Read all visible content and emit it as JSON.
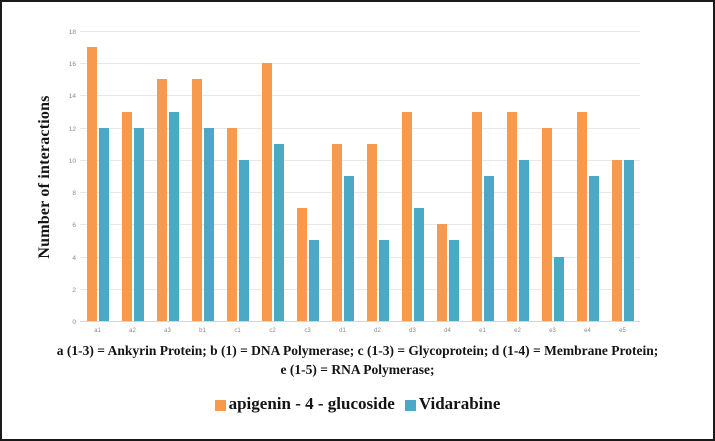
{
  "chart_data": {
    "type": "bar",
    "title": "",
    "ylabel": "Number of interactions",
    "xlabel": "",
    "ylim": [
      0,
      18
    ],
    "ytick_step": 2,
    "grid": true,
    "legend_position": "bottom",
    "categories": [
      "a1",
      "a2",
      "a3",
      "b1",
      "c1",
      "c2",
      "c3",
      "d1",
      "d2",
      "d3",
      "d4",
      "e1",
      "e2",
      "e3",
      "e4",
      "e5"
    ],
    "series": [
      {
        "name": "apigenin - 4 - glucoside",
        "color": "#F89A4D",
        "values": [
          17,
          13,
          15,
          15,
          12,
          16,
          7,
          11,
          11,
          13,
          6,
          13,
          13,
          12,
          13,
          10
        ]
      },
      {
        "name": "Vidarabine",
        "color": "#4BA9C6",
        "values": [
          12,
          12,
          13,
          12,
          10,
          11,
          5,
          9,
          5,
          7,
          5,
          9,
          10,
          4,
          9,
          10
        ]
      }
    ]
  },
  "caption": {
    "line1": "a (1-3) = Ankyrin Protein; b (1) = DNA Polymerase;  c (1-3) = Glycoprotein; d (1-4) = Membrane Protein;",
    "line2": "e (1-5) = RNA Polymerase;"
  },
  "colors": {
    "series1": "#F89A4D",
    "series2": "#4BA9C6",
    "gridline": "#e8e8e8",
    "axis_line": "#d6d6d6",
    "tick_text": "#8a8a8a",
    "text": "#141414"
  }
}
